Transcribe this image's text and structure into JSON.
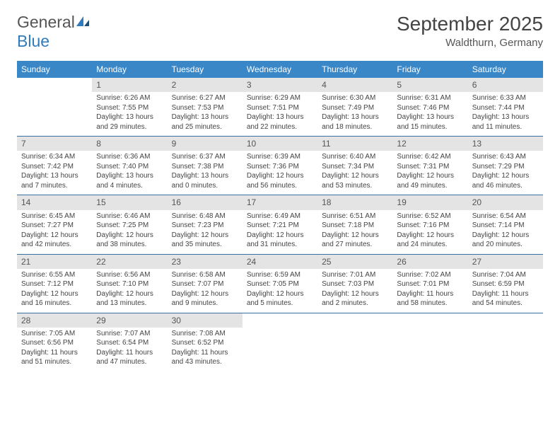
{
  "brand": {
    "part1": "General",
    "part2": "Blue"
  },
  "title": "September 2025",
  "location": "Waldthurn, Germany",
  "colors": {
    "header_bg": "#3a87c8",
    "header_text": "#ffffff",
    "daynum_bg": "#e4e4e4",
    "row_border": "#3a6fa0",
    "logo_blue": "#2f7bbf",
    "text": "#444444"
  },
  "weekdays": [
    "Sunday",
    "Monday",
    "Tuesday",
    "Wednesday",
    "Thursday",
    "Friday",
    "Saturday"
  ],
  "grid": [
    [
      {
        "n": "",
        "empty": true
      },
      {
        "n": "1",
        "sr": "6:26 AM",
        "ss": "7:55 PM",
        "dl": "13 hours and 29 minutes."
      },
      {
        "n": "2",
        "sr": "6:27 AM",
        "ss": "7:53 PM",
        "dl": "13 hours and 25 minutes."
      },
      {
        "n": "3",
        "sr": "6:29 AM",
        "ss": "7:51 PM",
        "dl": "13 hours and 22 minutes."
      },
      {
        "n": "4",
        "sr": "6:30 AM",
        "ss": "7:49 PM",
        "dl": "13 hours and 18 minutes."
      },
      {
        "n": "5",
        "sr": "6:31 AM",
        "ss": "7:46 PM",
        "dl": "13 hours and 15 minutes."
      },
      {
        "n": "6",
        "sr": "6:33 AM",
        "ss": "7:44 PM",
        "dl": "13 hours and 11 minutes."
      }
    ],
    [
      {
        "n": "7",
        "sr": "6:34 AM",
        "ss": "7:42 PM",
        "dl": "13 hours and 7 minutes."
      },
      {
        "n": "8",
        "sr": "6:36 AM",
        "ss": "7:40 PM",
        "dl": "13 hours and 4 minutes."
      },
      {
        "n": "9",
        "sr": "6:37 AM",
        "ss": "7:38 PM",
        "dl": "13 hours and 0 minutes."
      },
      {
        "n": "10",
        "sr": "6:39 AM",
        "ss": "7:36 PM",
        "dl": "12 hours and 56 minutes."
      },
      {
        "n": "11",
        "sr": "6:40 AM",
        "ss": "7:34 PM",
        "dl": "12 hours and 53 minutes."
      },
      {
        "n": "12",
        "sr": "6:42 AM",
        "ss": "7:31 PM",
        "dl": "12 hours and 49 minutes."
      },
      {
        "n": "13",
        "sr": "6:43 AM",
        "ss": "7:29 PM",
        "dl": "12 hours and 46 minutes."
      }
    ],
    [
      {
        "n": "14",
        "sr": "6:45 AM",
        "ss": "7:27 PM",
        "dl": "12 hours and 42 minutes."
      },
      {
        "n": "15",
        "sr": "6:46 AM",
        "ss": "7:25 PM",
        "dl": "12 hours and 38 minutes."
      },
      {
        "n": "16",
        "sr": "6:48 AM",
        "ss": "7:23 PM",
        "dl": "12 hours and 35 minutes."
      },
      {
        "n": "17",
        "sr": "6:49 AM",
        "ss": "7:21 PM",
        "dl": "12 hours and 31 minutes."
      },
      {
        "n": "18",
        "sr": "6:51 AM",
        "ss": "7:18 PM",
        "dl": "12 hours and 27 minutes."
      },
      {
        "n": "19",
        "sr": "6:52 AM",
        "ss": "7:16 PM",
        "dl": "12 hours and 24 minutes."
      },
      {
        "n": "20",
        "sr": "6:54 AM",
        "ss": "7:14 PM",
        "dl": "12 hours and 20 minutes."
      }
    ],
    [
      {
        "n": "21",
        "sr": "6:55 AM",
        "ss": "7:12 PM",
        "dl": "12 hours and 16 minutes."
      },
      {
        "n": "22",
        "sr": "6:56 AM",
        "ss": "7:10 PM",
        "dl": "12 hours and 13 minutes."
      },
      {
        "n": "23",
        "sr": "6:58 AM",
        "ss": "7:07 PM",
        "dl": "12 hours and 9 minutes."
      },
      {
        "n": "24",
        "sr": "6:59 AM",
        "ss": "7:05 PM",
        "dl": "12 hours and 5 minutes."
      },
      {
        "n": "25",
        "sr": "7:01 AM",
        "ss": "7:03 PM",
        "dl": "12 hours and 2 minutes."
      },
      {
        "n": "26",
        "sr": "7:02 AM",
        "ss": "7:01 PM",
        "dl": "11 hours and 58 minutes."
      },
      {
        "n": "27",
        "sr": "7:04 AM",
        "ss": "6:59 PM",
        "dl": "11 hours and 54 minutes."
      }
    ],
    [
      {
        "n": "28",
        "sr": "7:05 AM",
        "ss": "6:56 PM",
        "dl": "11 hours and 51 minutes."
      },
      {
        "n": "29",
        "sr": "7:07 AM",
        "ss": "6:54 PM",
        "dl": "11 hours and 47 minutes."
      },
      {
        "n": "30",
        "sr": "7:08 AM",
        "ss": "6:52 PM",
        "dl": "11 hours and 43 minutes."
      },
      {
        "n": "",
        "empty": true
      },
      {
        "n": "",
        "empty": true
      },
      {
        "n": "",
        "empty": true
      },
      {
        "n": "",
        "empty": true
      }
    ]
  ],
  "labels": {
    "sunrise": "Sunrise: ",
    "sunset": "Sunset: ",
    "daylight": "Daylight: "
  }
}
